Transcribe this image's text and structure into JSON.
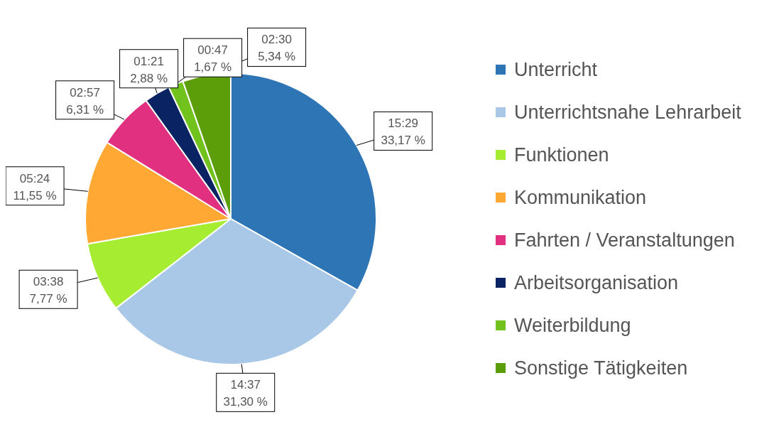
{
  "chart_data": {
    "type": "pie",
    "categories": [
      "Unterricht",
      "Unterrichtsnahe Lehrarbeit",
      "Funktionen",
      "Kommunikation",
      "Fahrten / Veranstaltungen",
      "Arbeitsorganisation",
      "Weiterbildung",
      "Sonstige Tätigkeiten"
    ],
    "values": [
      33.17,
      31.3,
      7.77,
      11.55,
      6.31,
      2.88,
      1.67,
      5.34
    ],
    "colors": [
      "#2e75b6",
      "#a9c8e8",
      "#a6ec30",
      "#ffa833",
      "#e0307f",
      "#0a2463",
      "#72c21e",
      "#5b9e0a"
    ],
    "value_labels": [
      "15:29\n33,17 %",
      "14:37\n31,30 %",
      "03:38\n7,77 %",
      "05:24\n11,55 %",
      "02:57\n6,31 %",
      "01:21\n2,88 %",
      "00:47\n1,67 %",
      "02:30\n5,34 %"
    ],
    "legend": "right"
  }
}
